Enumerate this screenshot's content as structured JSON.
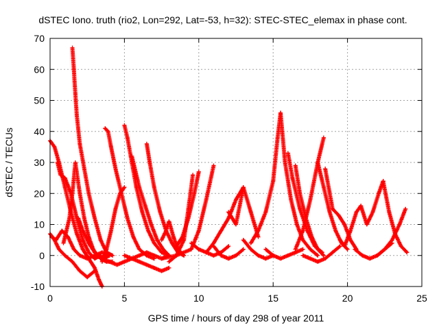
{
  "chart_data": {
    "type": "scatter",
    "title": "dSTEC Iono. truth (rio2, Lon=292, Lat=-53, h=32): STEC-STEC_elemax in phase cont.",
    "xlabel": "GPS time / hours of day 298 of year 2011",
    "ylabel": "dSTEC  / TECUs",
    "xlim": [
      0,
      25
    ],
    "ylim": [
      -10,
      70
    ],
    "xticks": [
      0,
      5,
      10,
      15,
      20,
      25
    ],
    "yticks": [
      -10,
      0,
      10,
      20,
      30,
      40,
      50,
      60,
      70
    ],
    "xtick_labels": [
      "0",
      "5",
      "10",
      "15",
      "20",
      "25"
    ],
    "ytick_labels": [
      "-10",
      "0",
      "10",
      "20",
      "30",
      "40",
      "50",
      "60",
      "70"
    ],
    "grid": true,
    "marker": "+",
    "color": "#ff0000",
    "series": [
      {
        "x": [
          0.0,
          0.3,
          0.6,
          1.0,
          1.4,
          1.8,
          2.2,
          2.6,
          3.0,
          3.3,
          3.5
        ],
        "y": [
          37,
          35,
          30,
          22,
          14,
          7,
          2,
          -1,
          -4,
          -8,
          -10
        ]
      },
      {
        "x": [
          0.0,
          0.3,
          0.6,
          1.0,
          1.5,
          2.0,
          2.5,
          3.0
        ],
        "y": [
          7,
          5,
          2,
          0,
          -2,
          -5,
          -7,
          -5
        ]
      },
      {
        "x": [
          0.1,
          0.4,
          0.8,
          1.2,
          1.6,
          2.0,
          2.5,
          3.0,
          3.5,
          4.0
        ],
        "y": [
          6,
          5,
          8,
          6,
          2,
          0,
          -1,
          0,
          1,
          0
        ]
      },
      {
        "x": [
          0.5,
          0.7,
          1.0,
          1.4,
          1.8,
          2.2,
          2.6,
          3.0,
          3.4
        ],
        "y": [
          30,
          26,
          25,
          20,
          12,
          5,
          1,
          -1,
          0
        ]
      },
      {
        "x": [
          0.9,
          1.1,
          1.3,
          1.5,
          1.7,
          2.0,
          2.3,
          2.6,
          2.9,
          3.2,
          3.6,
          4.0
        ],
        "y": [
          4,
          8,
          12,
          20,
          30,
          20,
          12,
          6,
          2,
          0,
          -1,
          0
        ]
      },
      {
        "x": [
          1.5,
          1.6,
          1.7,
          1.8,
          2.0,
          2.3,
          2.6,
          3.0,
          3.4,
          3.8,
          4.2
        ],
        "y": [
          67,
          60,
          52,
          45,
          36,
          28,
          20,
          12,
          5,
          1,
          0
        ]
      },
      {
        "x": [
          1.9,
          2.2,
          2.6,
          3.0,
          3.4,
          3.8,
          4.2
        ],
        "y": [
          12,
          8,
          4,
          1,
          -1,
          -2,
          -2
        ]
      },
      {
        "x": [
          3.5,
          3.8,
          4.1,
          4.4,
          4.7,
          5.0
        ],
        "y": [
          -2,
          2,
          8,
          15,
          20,
          22
        ]
      },
      {
        "x": [
          3.7,
          3.9,
          4.1,
          4.4,
          4.8,
          5.2,
          5.6,
          6.0,
          6.5,
          7.0
        ],
        "y": [
          41,
          40,
          35,
          28,
          20,
          12,
          6,
          2,
          0,
          -1
        ]
      },
      {
        "x": [
          3.5,
          4.0,
          4.5,
          5.0,
          5.5,
          6.0,
          6.5,
          7.0,
          7.5,
          8.0
        ],
        "y": [
          -1,
          -2,
          -3,
          -2,
          -1,
          0,
          1,
          0,
          -1,
          0
        ]
      },
      {
        "x": [
          5.0,
          5.2,
          5.5,
          5.8,
          6.2,
          6.6,
          7.0,
          7.5,
          8.0
        ],
        "y": [
          42,
          38,
          30,
          22,
          14,
          8,
          4,
          1,
          0
        ]
      },
      {
        "x": [
          5.5,
          5.7,
          6.0,
          6.4,
          6.8,
          7.2,
          7.6,
          8.0
        ],
        "y": [
          32,
          28,
          22,
          16,
          10,
          5,
          2,
          0
        ]
      },
      {
        "x": [
          5.0,
          5.5,
          6.0,
          6.5,
          7.0,
          7.5,
          8.0
        ],
        "y": [
          0,
          -1,
          -2,
          -3,
          -4,
          -5,
          -4
        ]
      },
      {
        "x": [
          6.5,
          6.7,
          7.0,
          7.4,
          7.8,
          8.2,
          8.6,
          9.0
        ],
        "y": [
          36,
          30,
          22,
          14,
          8,
          4,
          1,
          0
        ]
      },
      {
        "x": [
          7.5,
          7.8,
          8.0,
          8.3,
          8.6,
          9.0
        ],
        "y": [
          5,
          8,
          11,
          6,
          2,
          0
        ]
      },
      {
        "x": [
          8.0,
          8.5,
          9.0,
          9.3,
          9.6
        ],
        "y": [
          -2,
          0,
          5,
          15,
          26
        ]
      },
      {
        "x": [
          8.5,
          8.9,
          9.3,
          9.7,
          10.0
        ],
        "y": [
          3,
          6,
          12,
          20,
          27
        ]
      },
      {
        "x": [
          7.5,
          8.5,
          9.5,
          10.0,
          10.5,
          11.0
        ],
        "y": [
          -1,
          0,
          2,
          8,
          18,
          29
        ]
      },
      {
        "x": [
          9.5,
          10.0,
          10.5,
          11.0,
          11.5,
          12.0
        ],
        "y": [
          4,
          2,
          1,
          0,
          1,
          3
        ]
      },
      {
        "x": [
          10.5,
          11.0,
          11.5,
          12.0,
          12.5,
          13.0
        ],
        "y": [
          1,
          4,
          8,
          12,
          18,
          22
        ]
      },
      {
        "x": [
          11.0,
          11.5,
          12.0,
          12.5,
          13.0
        ],
        "y": [
          3,
          0,
          -1,
          0,
          2
        ]
      },
      {
        "x": [
          12.0,
          12.5,
          13.0,
          13.5,
          14.0
        ],
        "y": [
          14,
          10,
          22,
          14,
          6
        ]
      },
      {
        "x": [
          13.0,
          13.5,
          14.0,
          14.5,
          15.0
        ],
        "y": [
          5,
          2,
          0,
          -1,
          0
        ]
      },
      {
        "x": [
          13.5,
          14.0,
          14.5,
          15.0,
          15.3,
          15.5
        ],
        "y": [
          4,
          8,
          14,
          24,
          38,
          46
        ]
      },
      {
        "x": [
          15.5,
          15.8,
          16.2,
          16.6,
          17.0,
          17.5,
          18.0
        ],
        "y": [
          46,
          30,
          18,
          10,
          5,
          2,
          0
        ]
      },
      {
        "x": [
          14.5,
          15.0,
          15.5,
          16.0,
          16.5,
          17.0
        ],
        "y": [
          2,
          0,
          -1,
          0,
          1,
          2
        ]
      },
      {
        "x": [
          16.0,
          16.3,
          16.8,
          17.3,
          17.8,
          18.3
        ],
        "y": [
          33,
          25,
          15,
          8,
          3,
          1
        ]
      },
      {
        "x": [
          16.5,
          16.8,
          17.2,
          17.6,
          18.0,
          18.4
        ],
        "y": [
          29,
          20,
          12,
          6,
          2,
          0
        ]
      },
      {
        "x": [
          16.5,
          17.0,
          17.5,
          18.0,
          18.4
        ],
        "y": [
          2,
          8,
          18,
          30,
          38
        ]
      },
      {
        "x": [
          17.0,
          17.5,
          18.0,
          18.5,
          19.0,
          19.5
        ],
        "y": [
          0,
          -1,
          -2,
          -1,
          1,
          3
        ]
      },
      {
        "x": [
          18.0,
          18.4,
          18.8,
          19.2,
          19.6,
          20.0
        ],
        "y": [
          30,
          22,
          14,
          8,
          4,
          2
        ]
      },
      {
        "x": [
          18.5,
          19.0,
          19.4,
          19.8,
          20.2,
          20.6
        ],
        "y": [
          28,
          15,
          13,
          10,
          5,
          2
        ]
      },
      {
        "x": [
          19.5,
          19.8,
          20.2,
          20.6,
          20.9
        ],
        "y": [
          5,
          3,
          8,
          14,
          16
        ]
      },
      {
        "x": [
          20.5,
          21.0,
          21.5,
          22.0,
          22.5,
          23.0
        ],
        "y": [
          2,
          0,
          -1,
          0,
          2,
          4
        ]
      },
      {
        "x": [
          20.9,
          21.3,
          21.7,
          22.1,
          22.4
        ],
        "y": [
          16,
          10,
          14,
          20,
          24
        ]
      },
      {
        "x": [
          22.4,
          22.8,
          23.2,
          23.6,
          24.0
        ],
        "y": [
          24,
          14,
          7,
          3,
          1
        ]
      },
      {
        "x": [
          22.0,
          22.5,
          23.0,
          23.5,
          23.9
        ],
        "y": [
          0,
          2,
          5,
          10,
          15
        ]
      }
    ]
  }
}
